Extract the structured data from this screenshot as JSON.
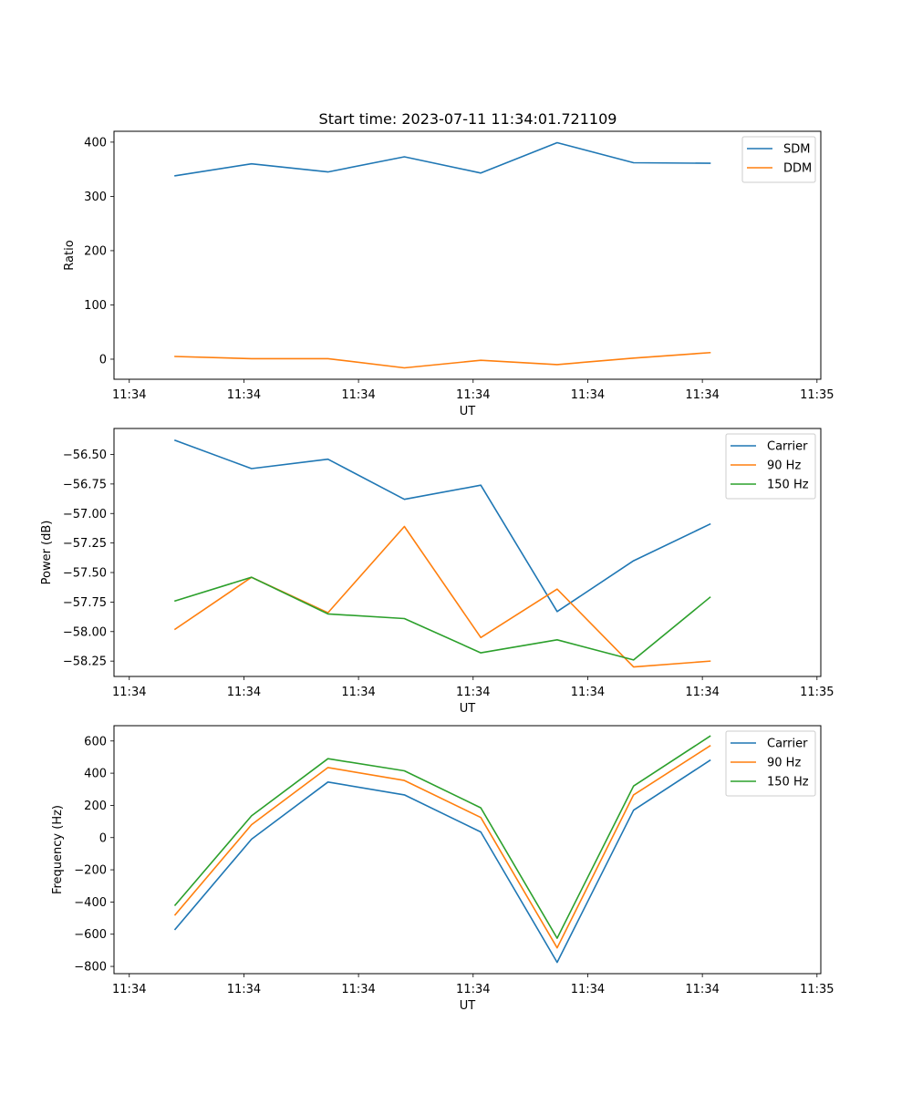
{
  "figure_title": "Start time: 2023-07-11 11:34:01.721109",
  "colors": {
    "blue": "#1f77b4",
    "orange": "#ff7f0e",
    "green": "#2ca02c"
  },
  "chart_data": [
    {
      "type": "line",
      "xlabel": "UT",
      "ylabel": "Ratio",
      "x": [
        1,
        2,
        3,
        4,
        5,
        6,
        7,
        8
      ],
      "xlim": [
        0.2,
        9.45
      ],
      "x_ticks": [
        0.4,
        1.9,
        3.4,
        4.9,
        6.4,
        7.9,
        9.4
      ],
      "x_tick_labels": [
        "11:34",
        "11:34",
        "11:34",
        "11:34",
        "11:34",
        "11:34",
        "11:35"
      ],
      "ylim": [
        -37,
        420
      ],
      "y_ticks": [
        0,
        100,
        200,
        300,
        400
      ],
      "y_tick_labels": [
        "0",
        "100",
        "200",
        "300",
        "400"
      ],
      "legend_position": "top-right",
      "series": [
        {
          "name": "SDM",
          "color": "#1f77b4",
          "values": [
            338,
            360,
            345,
            373,
            343,
            399,
            362,
            361
          ]
        },
        {
          "name": "DDM",
          "color": "#ff7f0e",
          "values": [
            5,
            1,
            1,
            -16,
            -2,
            -10,
            2,
            12
          ]
        }
      ]
    },
    {
      "type": "line",
      "xlabel": "UT",
      "ylabel": "Power (dB)",
      "x": [
        1,
        2,
        3,
        4,
        5,
        6,
        7,
        8
      ],
      "xlim": [
        0.2,
        9.45
      ],
      "x_ticks": [
        0.4,
        1.9,
        3.4,
        4.9,
        6.4,
        7.9,
        9.4
      ],
      "x_tick_labels": [
        "11:34",
        "11:34",
        "11:34",
        "11:34",
        "11:34",
        "11:34",
        "11:35"
      ],
      "ylim": [
        -58.38,
        -56.28
      ],
      "y_ticks": [
        -56.5,
        -56.75,
        -57.0,
        -57.25,
        -57.5,
        -57.75,
        -58.0,
        -58.25
      ],
      "y_tick_labels": [
        "−56.50",
        "−56.75",
        "−57.00",
        "−57.25",
        "−57.50",
        "−57.75",
        "−58.00",
        "−58.25"
      ],
      "legend_position": "top-right",
      "series": [
        {
          "name": "Carrier",
          "color": "#1f77b4",
          "values": [
            -56.38,
            -56.62,
            -56.54,
            -56.88,
            -56.76,
            -57.83,
            -57.4,
            -57.09
          ]
        },
        {
          "name": "90 Hz",
          "color": "#ff7f0e",
          "values": [
            -57.98,
            -57.54,
            -57.84,
            -57.11,
            -58.05,
            -57.64,
            -58.3,
            -58.25
          ]
        },
        {
          "name": "150 Hz",
          "color": "#2ca02c",
          "values": [
            -57.74,
            -57.54,
            -57.85,
            -57.89,
            -58.18,
            -58.07,
            -58.24,
            -57.71
          ]
        }
      ]
    },
    {
      "type": "line",
      "xlabel": "UT",
      "ylabel": "Frequency (Hz)",
      "x": [
        1,
        2,
        3,
        4,
        5,
        6,
        7,
        8
      ],
      "xlim": [
        0.2,
        9.45
      ],
      "x_ticks": [
        0.4,
        1.9,
        3.4,
        4.9,
        6.4,
        7.9,
        9.4
      ],
      "x_tick_labels": [
        "11:34",
        "11:34",
        "11:34",
        "11:34",
        "11:34",
        "11:34",
        "11:35"
      ],
      "ylim": [
        -845,
        695
      ],
      "y_ticks": [
        600,
        400,
        200,
        0,
        -200,
        -400,
        -600,
        -800
      ],
      "y_tick_labels": [
        "600",
        "400",
        "200",
        "0",
        "−200",
        "−400",
        "−600",
        "−800"
      ],
      "legend_position": "top-right",
      "series": [
        {
          "name": "Carrier",
          "color": "#1f77b4",
          "values": [
            -570,
            -10,
            345,
            265,
            35,
            -775,
            170,
            480
          ]
        },
        {
          "name": "90 Hz",
          "color": "#ff7f0e",
          "values": [
            -480,
            80,
            435,
            355,
            125,
            -685,
            265,
            570
          ]
        },
        {
          "name": "150 Hz",
          "color": "#2ca02c",
          "values": [
            -420,
            135,
            490,
            415,
            185,
            -625,
            320,
            630
          ]
        }
      ]
    }
  ]
}
